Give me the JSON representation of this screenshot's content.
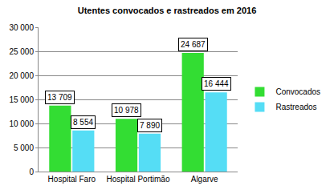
{
  "chart_data": {
    "type": "bar",
    "title": "Utentes convocados e rastreados em 2016",
    "categories": [
      "Hospital Faro",
      "Hospital Portimão",
      "Algarve"
    ],
    "series": [
      {
        "name": "Convocados",
        "color": "#33dd33",
        "values": [
          13709,
          10978,
          24687
        ],
        "value_labels": [
          "13 709",
          "10 978",
          "24 687"
        ]
      },
      {
        "name": "Rastreados",
        "color": "#55ddf5",
        "values": [
          8554,
          7890,
          16444
        ],
        "value_labels": [
          "8 554",
          "7 890",
          "16 444"
        ]
      }
    ],
    "ylim": [
      0,
      30000
    ],
    "yticks": [
      0,
      {
        "value": 5000,
        "label": "5 000"
      },
      {
        "value": 10000,
        "label": "10 000"
      },
      {
        "value": 15000,
        "label": "15 000"
      },
      {
        "value": 20000,
        "label": "20 000"
      },
      {
        "value": 25000,
        "label": "25 000"
      },
      {
        "value": 30000,
        "label": "30 000"
      }
    ],
    "grid": true,
    "legend": "right",
    "data_labels": true
  }
}
